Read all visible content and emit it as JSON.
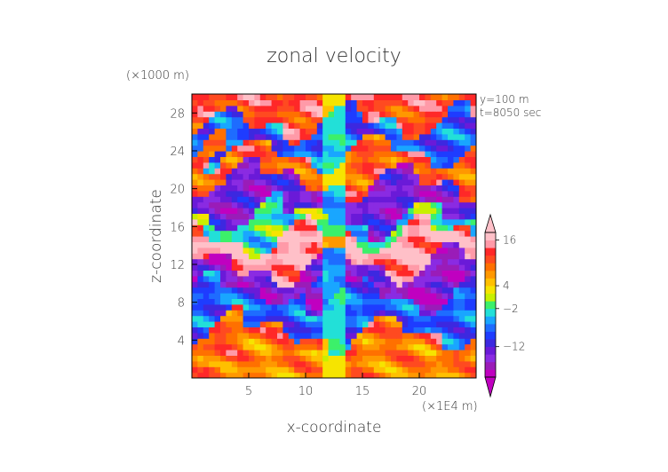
{
  "chart_data": {
    "type": "heatmap",
    "title": "zonal velocity",
    "xlabel": "x-coordinate",
    "ylabel": "z-coordinate",
    "x_unit": "(×1E4 m)",
    "y_unit": "(×1000 m)",
    "annotations": [
      "y=100 m",
      "t=8050 sec"
    ],
    "x_range": [
      0,
      25
    ],
    "y_range": [
      0,
      30
    ],
    "x_ticks": [
      5,
      10,
      15,
      20
    ],
    "y_ticks": [
      4,
      8,
      12,
      16,
      20,
      24,
      28
    ],
    "colorbar": {
      "levels": [
        -18,
        -16,
        -14,
        -12,
        -10,
        -8,
        -6,
        -4,
        -2,
        0,
        2,
        4,
        6,
        8,
        10,
        12,
        14,
        16,
        18
      ],
      "colors": [
        "#c000c0",
        "#9a1cb8",
        "#8a2be2",
        "#6a1ad8",
        "#3c28e0",
        "#1e3cff",
        "#1e6cff",
        "#19a6ff",
        "#22e0d8",
        "#3cf06a",
        "#c8f000",
        "#f6e400",
        "#ffc000",
        "#ff9800",
        "#ff7000",
        "#ff4a20",
        "#ff2828",
        "#ff9aa8",
        "#ffc0c8"
      ],
      "labels": [
        -12,
        -2,
        4,
        16
      ],
      "extend": "both"
    },
    "field_bands": [
      {
        "z": [
          0,
          3
        ],
        "value": 8
      },
      {
        "z": [
          3,
          5
        ],
        "value": 10
      },
      {
        "z": [
          5,
          9
        ],
        "value": -8
      },
      {
        "z": [
          9,
          12
        ],
        "value": -16
      },
      {
        "z": [
          12,
          15
        ],
        "value": 16
      },
      {
        "z": [
          15,
          17
        ],
        "value": -2
      },
      {
        "z": [
          17,
          21
        ],
        "value": -14
      },
      {
        "z": [
          21,
          24
        ],
        "value": 10
      },
      {
        "z": [
          24,
          27
        ],
        "value": -8
      },
      {
        "z": [
          27,
          30
        ],
        "value": 12
      }
    ],
    "grid": false
  }
}
